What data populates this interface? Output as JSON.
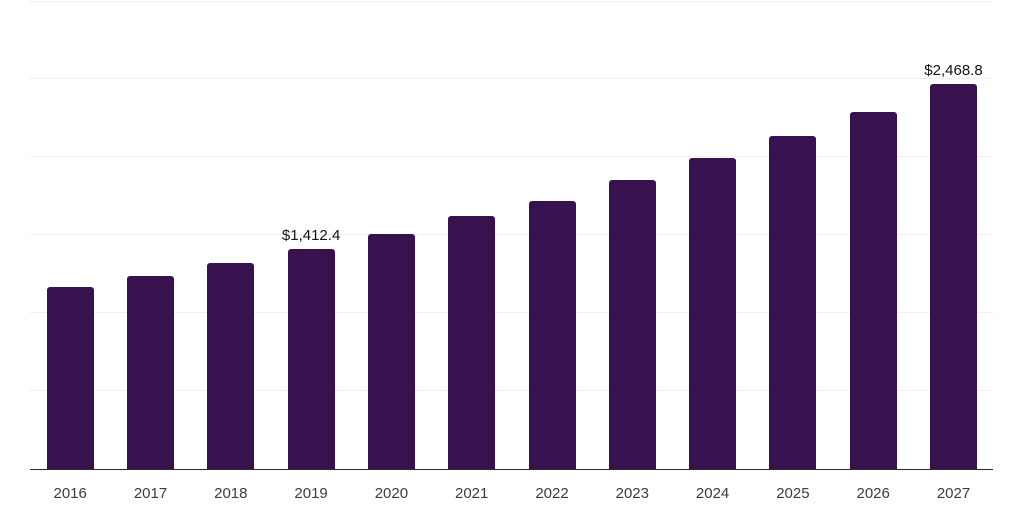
{
  "chart_data": {
    "type": "bar",
    "title": "",
    "xlabel": "",
    "ylabel": "",
    "categories": [
      "2016",
      "2017",
      "2018",
      "2019",
      "2020",
      "2021",
      "2022",
      "2023",
      "2024",
      "2025",
      "2026",
      "2027"
    ],
    "values": [
      1165.0,
      1235.5,
      1321.5,
      1412.4,
      1509.5,
      1620.5,
      1723.0,
      1856.0,
      1995.0,
      2138.0,
      2294.0,
      2468.8
    ],
    "data_labels": [
      "",
      "",
      "",
      "$1,412.4",
      "",
      "",
      "",
      "",
      "",
      "",
      "",
      "$2,468.8"
    ],
    "ylim": [
      0,
      3000
    ],
    "gridline_step": 500,
    "grid": "horizontal-only",
    "legend_position": "none",
    "colors": {
      "bar": "#38124e",
      "gridline": "#efefef",
      "axis_line": "#2b2b2b",
      "tick_label": "#3c3c3c",
      "value_label": "#141414",
      "background": "#ffffff"
    }
  }
}
